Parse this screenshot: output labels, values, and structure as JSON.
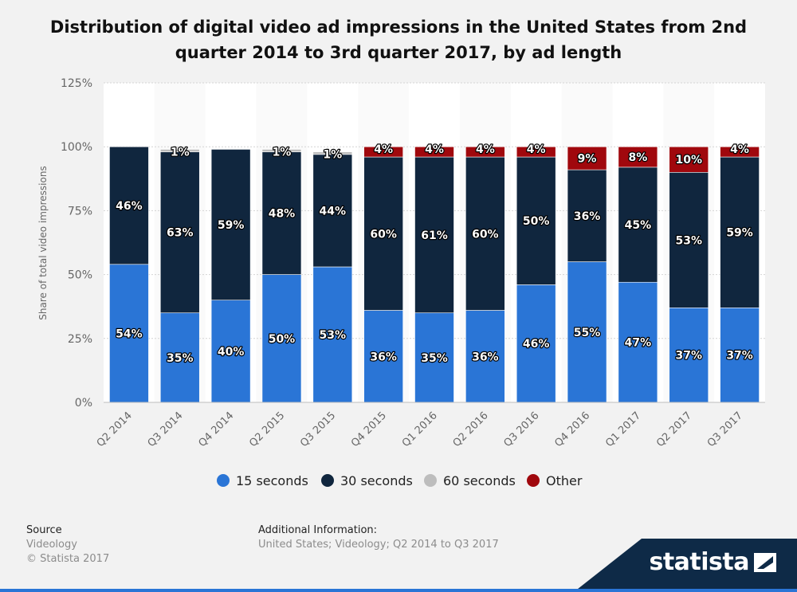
{
  "title": "Distribution of digital video ad impressions in the United States from 2nd quarter 2014 to 3rd quarter 2017, by ad length",
  "chart_data": {
    "type": "bar",
    "stacked": true,
    "categories": [
      "Q2 2014",
      "Q3 2014",
      "Q4 2014",
      "Q2 2015",
      "Q3 2015",
      "Q4 2015",
      "Q1 2016",
      "Q2 2016",
      "Q3 2016",
      "Q4 2016",
      "Q1 2017",
      "Q2 2017",
      "Q3 2017"
    ],
    "series": [
      {
        "name": "15 seconds",
        "color": "#2a75d6",
        "values": [
          54,
          35,
          40,
          50,
          53,
          36,
          35,
          36,
          46,
          55,
          47,
          37,
          37
        ]
      },
      {
        "name": "30 seconds",
        "color": "#10263e",
        "values": [
          46,
          63,
          59,
          48,
          44,
          60,
          61,
          60,
          50,
          36,
          45,
          53,
          59
        ]
      },
      {
        "name": "60 seconds",
        "color": "#bdbdbd",
        "values": [
          0,
          1,
          0,
          1,
          1,
          0,
          0,
          0,
          0,
          0,
          0,
          0,
          0
        ]
      },
      {
        "name": "Other",
        "color": "#a0080d",
        "values": [
          0,
          0,
          0,
          0,
          0,
          4,
          4,
          4,
          4,
          9,
          8,
          10,
          4
        ]
      }
    ],
    "ylabel": "Share of total video impressions",
    "xlabel": "",
    "ylim": [
      0,
      125
    ],
    "yticks": [
      "0%",
      "25%",
      "50%",
      "75%",
      "100%",
      "125%"
    ],
    "grid": true,
    "legend": "bottom"
  },
  "footer": {
    "source_label": "Source",
    "source_lines": [
      "Videology",
      "© Statista 2017"
    ],
    "info_label": "Additional Information:",
    "info_text": "United States; Videology; Q2 2014 to Q3 2017"
  },
  "brand": {
    "name": "statista",
    "color": "#0e2a47"
  }
}
